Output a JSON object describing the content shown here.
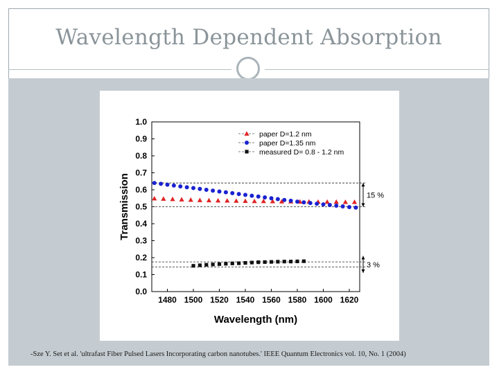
{
  "slide": {
    "title": "Wavelength Dependent Absorption",
    "citation": "-Sze Y. Set et al. 'ultrafast Fiber Pulsed Lasers Incorporating carbon nanotubes.' IEEE Quantum Electronics vol. 10, No. 1 (2004)"
  },
  "colors": {
    "accent": "#aab4b8",
    "body_bg": "#c5ccd1",
    "series_red": "#e02424",
    "series_blue": "#1a22d0",
    "series_black": "#111111"
  },
  "chart_data": {
    "type": "scatter",
    "title": "",
    "xlabel": "Wavelength (nm)",
    "ylabel": "Transmission",
    "xlim": [
      1468,
      1628
    ],
    "ylim": [
      0.0,
      1.0
    ],
    "x_ticks": [
      "1480",
      "1500",
      "1520",
      "1540",
      "1560",
      "1580",
      "1600",
      "1620"
    ],
    "y_ticks": [
      "0.0",
      "0.1",
      "0.2",
      "0.3",
      "0.4",
      "0.5",
      "0.6",
      "0.7",
      "0.8",
      "0.9",
      "1.0"
    ],
    "legend_position": "top-right",
    "series": [
      {
        "name": "paper D=1.2 nm",
        "marker": "triangle",
        "color": "#e02424",
        "x": [
          1470,
          1477,
          1484,
          1491,
          1498,
          1505,
          1512,
          1519,
          1526,
          1533,
          1540,
          1547,
          1554,
          1561,
          1568,
          1575,
          1582,
          1589,
          1596,
          1603,
          1610,
          1617,
          1624
        ],
        "y": [
          0.549,
          0.547,
          0.545,
          0.543,
          0.541,
          0.539,
          0.538,
          0.537,
          0.536,
          0.535,
          0.534,
          0.533,
          0.533,
          0.532,
          0.531,
          0.531,
          0.53,
          0.53,
          0.529,
          0.529,
          0.529,
          0.528,
          0.528
        ]
      },
      {
        "name": "paper D=1.35 nm",
        "marker": "circle",
        "color": "#1a22d0",
        "x": [
          1470,
          1475,
          1480,
          1485,
          1490,
          1495,
          1500,
          1505,
          1510,
          1515,
          1520,
          1525,
          1530,
          1535,
          1540,
          1545,
          1550,
          1555,
          1560,
          1565,
          1570,
          1575,
          1580,
          1585,
          1590,
          1595,
          1600,
          1605,
          1610,
          1615,
          1620,
          1625
        ],
        "y": [
          0.64,
          0.635,
          0.63,
          0.625,
          0.62,
          0.615,
          0.61,
          0.605,
          0.6,
          0.595,
          0.59,
          0.585,
          0.58,
          0.575,
          0.57,
          0.565,
          0.56,
          0.555,
          0.55,
          0.545,
          0.54,
          0.535,
          0.53,
          0.526,
          0.522,
          0.518,
          0.514,
          0.51,
          0.506,
          0.502,
          0.498,
          0.495
        ]
      },
      {
        "name": "measured D= 0.8 - 1.2 nm",
        "marker": "square",
        "color": "#111111",
        "x": [
          1500,
          1505,
          1510,
          1515,
          1520,
          1525,
          1530,
          1535,
          1540,
          1545,
          1550,
          1555,
          1560,
          1565,
          1570,
          1575,
          1580,
          1585
        ],
        "y": [
          0.152,
          0.155,
          0.158,
          0.16,
          0.162,
          0.164,
          0.166,
          0.167,
          0.169,
          0.171,
          0.173,
          0.174,
          0.175,
          0.176,
          0.177,
          0.177,
          0.178,
          0.179
        ]
      }
    ],
    "reference_lines": [
      0.64,
      0.5,
      0.175,
      0.145
    ],
    "annotations": [
      {
        "text": "15 %",
        "from": 0.64,
        "to": 0.5
      },
      {
        "text": "3 %",
        "from": 0.21,
        "to": 0.11
      }
    ]
  }
}
